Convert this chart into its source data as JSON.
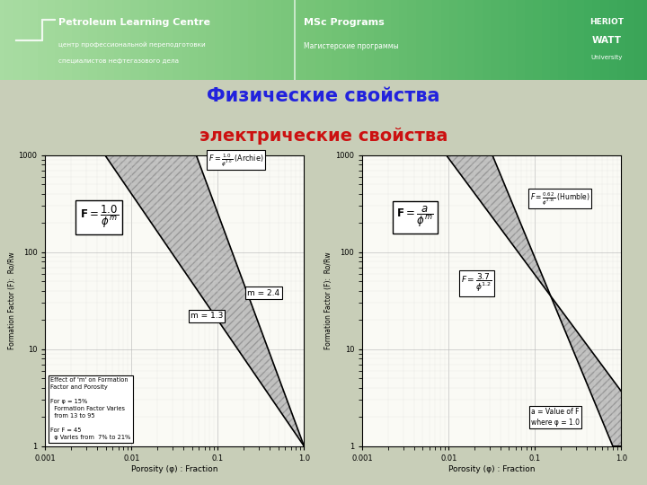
{
  "title1": "Физические свойства",
  "title2": "электрические свойства",
  "title1_color": "#2222DD",
  "title2_color": "#CC1111",
  "slide_bg": "#C8CEB8",
  "plot_bg": "#FAFAF5",
  "header_color1": "#6AAE68",
  "header_color2": "#8DC88A",
  "hw_bg": "#1A1A6E",
  "m_low": 1.3,
  "m_high": 2.4,
  "a_humble": 0.62,
  "m_humble": 2.15,
  "a_other": 3.7,
  "m_other": 1.2,
  "xlabel": "Porosity (φ) : Fraction",
  "ylabel": "Formation Factor (F):  Ro/Rw",
  "ylabel_short": "Formation Factor (F):  Ro⁄Rw"
}
